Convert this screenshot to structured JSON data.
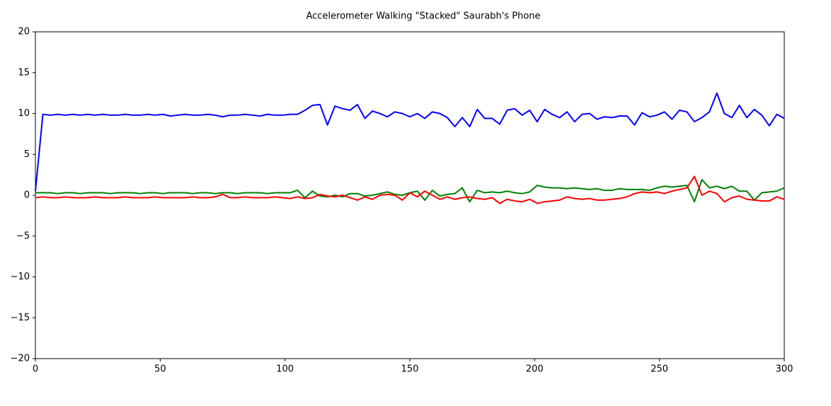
{
  "chart_data": {
    "type": "line",
    "title": "Accelerometer Walking \"Stacked\" Saurabh's Phone",
    "x": [
      0,
      3,
      6,
      9,
      12,
      15,
      18,
      21,
      24,
      27,
      30,
      33,
      36,
      39,
      42,
      45,
      48,
      51,
      54,
      57,
      60,
      63,
      66,
      69,
      72,
      75,
      78,
      81,
      84,
      87,
      90,
      93,
      96,
      99,
      102,
      105,
      108,
      111,
      114,
      117,
      120,
      123,
      126,
      129,
      132,
      135,
      138,
      141,
      144,
      147,
      150,
      153,
      156,
      159,
      162,
      165,
      168,
      171,
      174,
      177,
      180,
      183,
      186,
      189,
      192,
      195,
      198,
      201,
      204,
      207,
      210,
      213,
      216,
      219,
      222,
      225,
      228,
      231,
      234,
      237,
      240,
      243,
      246,
      249,
      252,
      255,
      258,
      261,
      264,
      267,
      270,
      273,
      276,
      279,
      282,
      285,
      288,
      291,
      294,
      297,
      300
    ],
    "series": [
      {
        "color": "#0000ff",
        "values": [
          0.5,
          9.9,
          9.8,
          9.9,
          9.8,
          9.9,
          9.8,
          9.9,
          9.8,
          9.9,
          9.8,
          9.8,
          9.9,
          9.8,
          9.8,
          9.9,
          9.8,
          9.9,
          9.7,
          9.8,
          9.9,
          9.8,
          9.8,
          9.9,
          9.8,
          9.6,
          9.8,
          9.8,
          9.9,
          9.8,
          9.7,
          9.9,
          9.8,
          9.8,
          9.9,
          9.9,
          10.4,
          11.0,
          11.1,
          8.6,
          10.9,
          10.6,
          10.4,
          11.1,
          9.4,
          10.3,
          10.0,
          9.6,
          10.2,
          10.0,
          9.6,
          10.0,
          9.4,
          10.2,
          10.0,
          9.5,
          8.4,
          9.5,
          8.4,
          10.5,
          9.4,
          9.4,
          8.7,
          10.4,
          10.6,
          9.8,
          10.4,
          9.0,
          10.5,
          9.9,
          9.5,
          10.2,
          9.0,
          9.9,
          10.0,
          9.3,
          9.6,
          9.5,
          9.7,
          9.7,
          8.6,
          10.1,
          9.6,
          9.8,
          10.2,
          9.3,
          10.4,
          10.2,
          9.0,
          9.5,
          10.2,
          12.5,
          10.0,
          9.5,
          11.0,
          9.5,
          10.5,
          9.8,
          8.5,
          9.9,
          9.4
        ]
      },
      {
        "color": "#008000",
        "values": [
          0.3,
          0.3,
          0.3,
          0.2,
          0.3,
          0.3,
          0.2,
          0.3,
          0.3,
          0.3,
          0.2,
          0.3,
          0.3,
          0.3,
          0.2,
          0.3,
          0.3,
          0.2,
          0.3,
          0.3,
          0.3,
          0.2,
          0.3,
          0.3,
          0.2,
          0.3,
          0.3,
          0.2,
          0.3,
          0.3,
          0.3,
          0.2,
          0.3,
          0.3,
          0.3,
          0.6,
          -0.3,
          0.5,
          -0.1,
          -0.2,
          0.0,
          -0.2,
          0.2,
          0.2,
          -0.1,
          0.0,
          0.2,
          0.4,
          0.1,
          0.0,
          0.3,
          0.5,
          -0.6,
          0.6,
          -0.1,
          0.1,
          0.2,
          0.9,
          -0.8,
          0.6,
          0.3,
          0.4,
          0.3,
          0.5,
          0.3,
          0.2,
          0.4,
          1.2,
          1.0,
          0.9,
          0.9,
          0.8,
          0.9,
          0.8,
          0.7,
          0.8,
          0.6,
          0.6,
          0.8,
          0.7,
          0.7,
          0.7,
          0.6,
          0.9,
          1.1,
          1.0,
          1.1,
          1.2,
          -0.8,
          1.9,
          0.9,
          1.1,
          0.8,
          1.1,
          0.5,
          0.5,
          -0.6,
          0.3,
          0.4,
          0.5,
          0.9
        ]
      },
      {
        "color": "#ff0000",
        "values": [
          -0.3,
          -0.2,
          -0.3,
          -0.3,
          -0.2,
          -0.3,
          -0.3,
          -0.3,
          -0.2,
          -0.3,
          -0.3,
          -0.3,
          -0.2,
          -0.3,
          -0.3,
          -0.3,
          -0.2,
          -0.3,
          -0.3,
          -0.3,
          -0.3,
          -0.2,
          -0.3,
          -0.3,
          -0.2,
          0.1,
          -0.3,
          -0.3,
          -0.2,
          -0.3,
          -0.3,
          -0.3,
          -0.2,
          -0.3,
          -0.4,
          -0.2,
          -0.4,
          -0.3,
          0.1,
          -0.1,
          -0.2,
          0.0,
          -0.3,
          -0.6,
          -0.2,
          -0.5,
          0.0,
          0.1,
          0.0,
          -0.6,
          0.3,
          -0.2,
          0.5,
          0.0,
          -0.5,
          -0.2,
          -0.5,
          -0.3,
          -0.2,
          -0.4,
          -0.5,
          -0.3,
          -1.0,
          -0.5,
          -0.7,
          -0.8,
          -0.5,
          -1.0,
          -0.8,
          -0.7,
          -0.6,
          -0.2,
          -0.4,
          -0.5,
          -0.4,
          -0.6,
          -0.6,
          -0.5,
          -0.4,
          -0.2,
          0.2,
          0.4,
          0.3,
          0.4,
          0.2,
          0.5,
          0.7,
          0.9,
          2.3,
          0.0,
          0.5,
          0.2,
          -0.8,
          -0.3,
          -0.1,
          -0.5,
          -0.6,
          -0.7,
          -0.7,
          -0.2,
          -0.5
        ]
      }
    ],
    "xlim": [
      0,
      300
    ],
    "xticks": [
      0,
      50,
      100,
      150,
      200,
      250,
      300
    ],
    "ylim": [
      -20,
      20
    ],
    "yticks": [
      {
        "value": -20,
        "label": "−20"
      },
      {
        "value": -15,
        "label": "−15"
      },
      {
        "value": -10,
        "label": "−10"
      },
      {
        "value": -5,
        "label": "−5"
      },
      0,
      5,
      10,
      15,
      20
    ]
  }
}
